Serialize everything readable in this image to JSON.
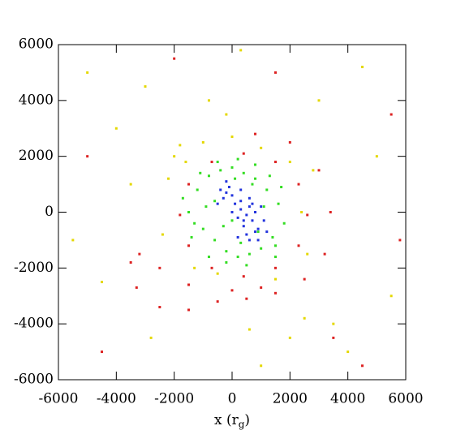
{
  "chart_data": {
    "type": "scatter",
    "x_label": [
      "x (r",
      "g",
      ")"
    ],
    "xlim": [
      -6000,
      6000
    ],
    "ylim": [
      -6000,
      6000
    ],
    "xticks": [
      -6000,
      -4000,
      -2000,
      0,
      2000,
      4000,
      6000
    ],
    "yticks": [
      -6000,
      -4000,
      -2000,
      0,
      2000,
      4000,
      6000
    ],
    "series": [
      {
        "color": "#e4d800",
        "x": [
          -2000,
          -1800,
          -1600,
          -2200,
          -1000,
          0,
          1000,
          2000,
          2400,
          2600,
          -2400,
          -500,
          1500,
          2800,
          -1300,
          -5000,
          -4000,
          -3000,
          4500,
          5500,
          3000,
          -5500,
          2000,
          -800,
          4000,
          -2800,
          600,
          -3500,
          3500,
          -200,
          5000,
          1000,
          -4500,
          2500,
          300
        ],
        "y": [
          2000,
          2400,
          1800,
          1200,
          2500,
          2700,
          2300,
          1800,
          0,
          -1500,
          -800,
          -2200,
          -2400,
          1500,
          -2000,
          5000,
          3000,
          4500,
          5200,
          -3000,
          4000,
          -1000,
          -4500,
          4000,
          -5000,
          -4500,
          -4200,
          1000,
          -4000,
          3500,
          2000,
          -5500,
          -2500,
          -3800,
          5800
        ]
      },
      {
        "color": "#dd2222",
        "x": [
          2600,
          2300,
          1500,
          400,
          -700,
          -1500,
          -1800,
          -1500,
          -700,
          400,
          1500,
          2300,
          800,
          2000,
          3000,
          3400,
          3200,
          2500,
          1500,
          500,
          -500,
          -1500,
          -2500,
          -3300,
          -3500,
          -3200,
          -2500,
          -1500,
          0,
          1000,
          -5000,
          4500,
          5500,
          -2000,
          3500,
          -4500,
          1500,
          5800
        ],
        "y": [
          -100,
          1000,
          1800,
          2100,
          1800,
          1000,
          -100,
          -1200,
          -2000,
          -2300,
          -2000,
          -1200,
          2800,
          2500,
          1500,
          0,
          -1500,
          -2400,
          -2900,
          -3100,
          -3200,
          -3500,
          -3400,
          -2700,
          -1800,
          -1500,
          -2000,
          -2600,
          -2800,
          -2700,
          2000,
          -5500,
          3500,
          5500,
          -4500,
          -5000,
          5000,
          -1000
        ]
      },
      {
        "color": "#33dd22",
        "x": [
          -1500,
          -1200,
          -800,
          -400,
          0,
          400,
          800,
          1200,
          1600,
          1800,
          -1000,
          -600,
          -200,
          200,
          600,
          1000,
          1400,
          -1400,
          -900,
          -300,
          300,
          900,
          1500,
          -1100,
          -500,
          100,
          700,
          1300,
          -800,
          0,
          800,
          1700,
          -1700,
          -1300,
          500,
          1100,
          -600,
          200,
          1500,
          -200
        ],
        "y": [
          0,
          800,
          1300,
          1500,
          1600,
          1400,
          1200,
          800,
          300,
          -400,
          -600,
          -1000,
          -1400,
          -1600,
          -1500,
          -1300,
          -900,
          -900,
          200,
          -500,
          -1100,
          -700,
          -1200,
          1400,
          1800,
          1200,
          1000,
          1300,
          -1600,
          -300,
          1700,
          900,
          500,
          -400,
          -1900,
          200,
          400,
          1900,
          -1600,
          -1800
        ]
      },
      {
        "color": "#2233dd",
        "x": [
          500,
          300,
          700,
          600,
          400,
          800,
          200,
          900,
          1000,
          500,
          300,
          700,
          -200,
          -100,
          -300,
          0,
          -400,
          100,
          -200,
          600,
          800,
          400,
          200,
          1100,
          900,
          0,
          1200,
          -500,
          600,
          300
        ],
        "y": [
          -100,
          100,
          -300,
          200,
          -500,
          0,
          -200,
          -600,
          200,
          -800,
          400,
          300,
          700,
          900,
          500,
          600,
          800,
          300,
          1100,
          -1000,
          -700,
          -300,
          -900,
          -300,
          -1000,
          0,
          -700,
          300,
          500,
          800
        ]
      }
    ]
  }
}
